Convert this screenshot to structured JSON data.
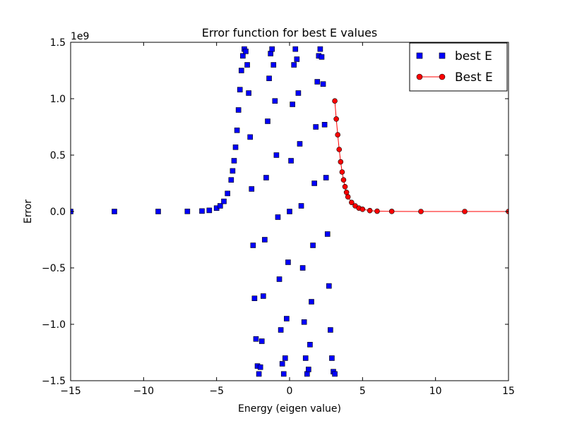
{
  "chart_data": {
    "type": "scatter",
    "title": "Error function for best E values",
    "xlabel": "Energy (eigen value)",
    "ylabel": "Error",
    "y_multiplier_label": "1e9",
    "xlim": [
      -15,
      15
    ],
    "ylim": [
      -1.5,
      1.5
    ],
    "x_ticks": [
      -15,
      -10,
      -5,
      0,
      5,
      10,
      15
    ],
    "x_tick_labels": [
      "−15",
      "−10",
      "−5",
      "0",
      "5",
      "10",
      "15"
    ],
    "y_ticks": [
      -1.5,
      -1.0,
      -0.5,
      0.0,
      0.5,
      1.0,
      1.5
    ],
    "y_tick_labels": [
      "−1.5",
      "−1.0",
      "−0.5",
      "0.0",
      "0.5",
      "1.0",
      "1.5"
    ],
    "grid": false,
    "legend_position": "top-right",
    "series": [
      {
        "name": "best E",
        "marker": "square",
        "line": false,
        "color": "#0000ff",
        "x": [
          -15,
          -12,
          -9,
          -7,
          -6,
          -5.5,
          -5,
          -4.75,
          -4.5,
          -4.25,
          -4,
          -3.9,
          -3.8,
          -3.7,
          -3.6,
          -3.5,
          -3.4,
          -3.3,
          -3.2,
          -3.1,
          -3,
          -2.9,
          -2.8,
          -2.7,
          -2.6,
          -2.5,
          -2.4,
          -2.3,
          -2.2,
          -2.1,
          -2,
          -1.9,
          -1.8,
          -1.7,
          -1.6,
          -1.5,
          -1.4,
          -1.3,
          -1.2,
          -1.1,
          -1,
          -0.9,
          -0.8,
          -0.7,
          -0.6,
          -0.5,
          -0.4,
          -0.3,
          -0.2,
          -0.1,
          0,
          0.1,
          0.2,
          0.3,
          0.4,
          0.5,
          0.6,
          0.7,
          0.8,
          0.9,
          1,
          1.1,
          1.2,
          1.3,
          1.4,
          1.5,
          1.6,
          1.7,
          1.8,
          1.9,
          2,
          2.1,
          2.2,
          2.3,
          2.4,
          2.5,
          2.6,
          2.7,
          2.8,
          2.9,
          3,
          3.1
        ],
        "y": [
          0,
          0,
          0,
          0.001,
          0.004,
          0.01,
          0.03,
          0.05,
          0.09,
          0.16,
          0.28,
          0.36,
          0.45,
          0.57,
          0.72,
          0.9,
          1.08,
          1.25,
          1.38,
          1.44,
          1.42,
          1.3,
          1.05,
          0.66,
          0.2,
          -0.3,
          -0.77,
          -1.13,
          -1.37,
          -1.44,
          -1.38,
          -1.15,
          -0.75,
          -0.25,
          0.3,
          0.8,
          1.18,
          1.4,
          1.44,
          1.3,
          0.98,
          0.5,
          -0.05,
          -0.6,
          -1.05,
          -1.35,
          -1.44,
          -1.3,
          -0.95,
          -0.45,
          0,
          0.45,
          0.95,
          1.3,
          1.44,
          1.35,
          1.05,
          0.6,
          0.05,
          -0.5,
          -0.98,
          -1.3,
          -1.44,
          -1.4,
          -1.18,
          -0.8,
          -0.3,
          0.25,
          0.75,
          1.15,
          1.38,
          1.44,
          1.37,
          1.13,
          0.77,
          0.3,
          -0.2,
          -0.66,
          -1.05,
          -1.3,
          -1.42,
          -1.44
        ]
      },
      {
        "name": "Best E",
        "marker": "circle",
        "line": true,
        "color": "#ff0000",
        "x": [
          3.1,
          3.2,
          3.3,
          3.4,
          3.5,
          3.6,
          3.7,
          3.8,
          3.9,
          4,
          4.25,
          4.5,
          4.75,
          5,
          5.5,
          6,
          7,
          9,
          12,
          15
        ],
        "y": [
          0.98,
          0.82,
          0.68,
          0.55,
          0.44,
          0.35,
          0.28,
          0.22,
          0.17,
          0.13,
          0.08,
          0.05,
          0.03,
          0.02,
          0.008,
          0.003,
          0.001,
          0,
          0,
          0
        ]
      }
    ]
  }
}
